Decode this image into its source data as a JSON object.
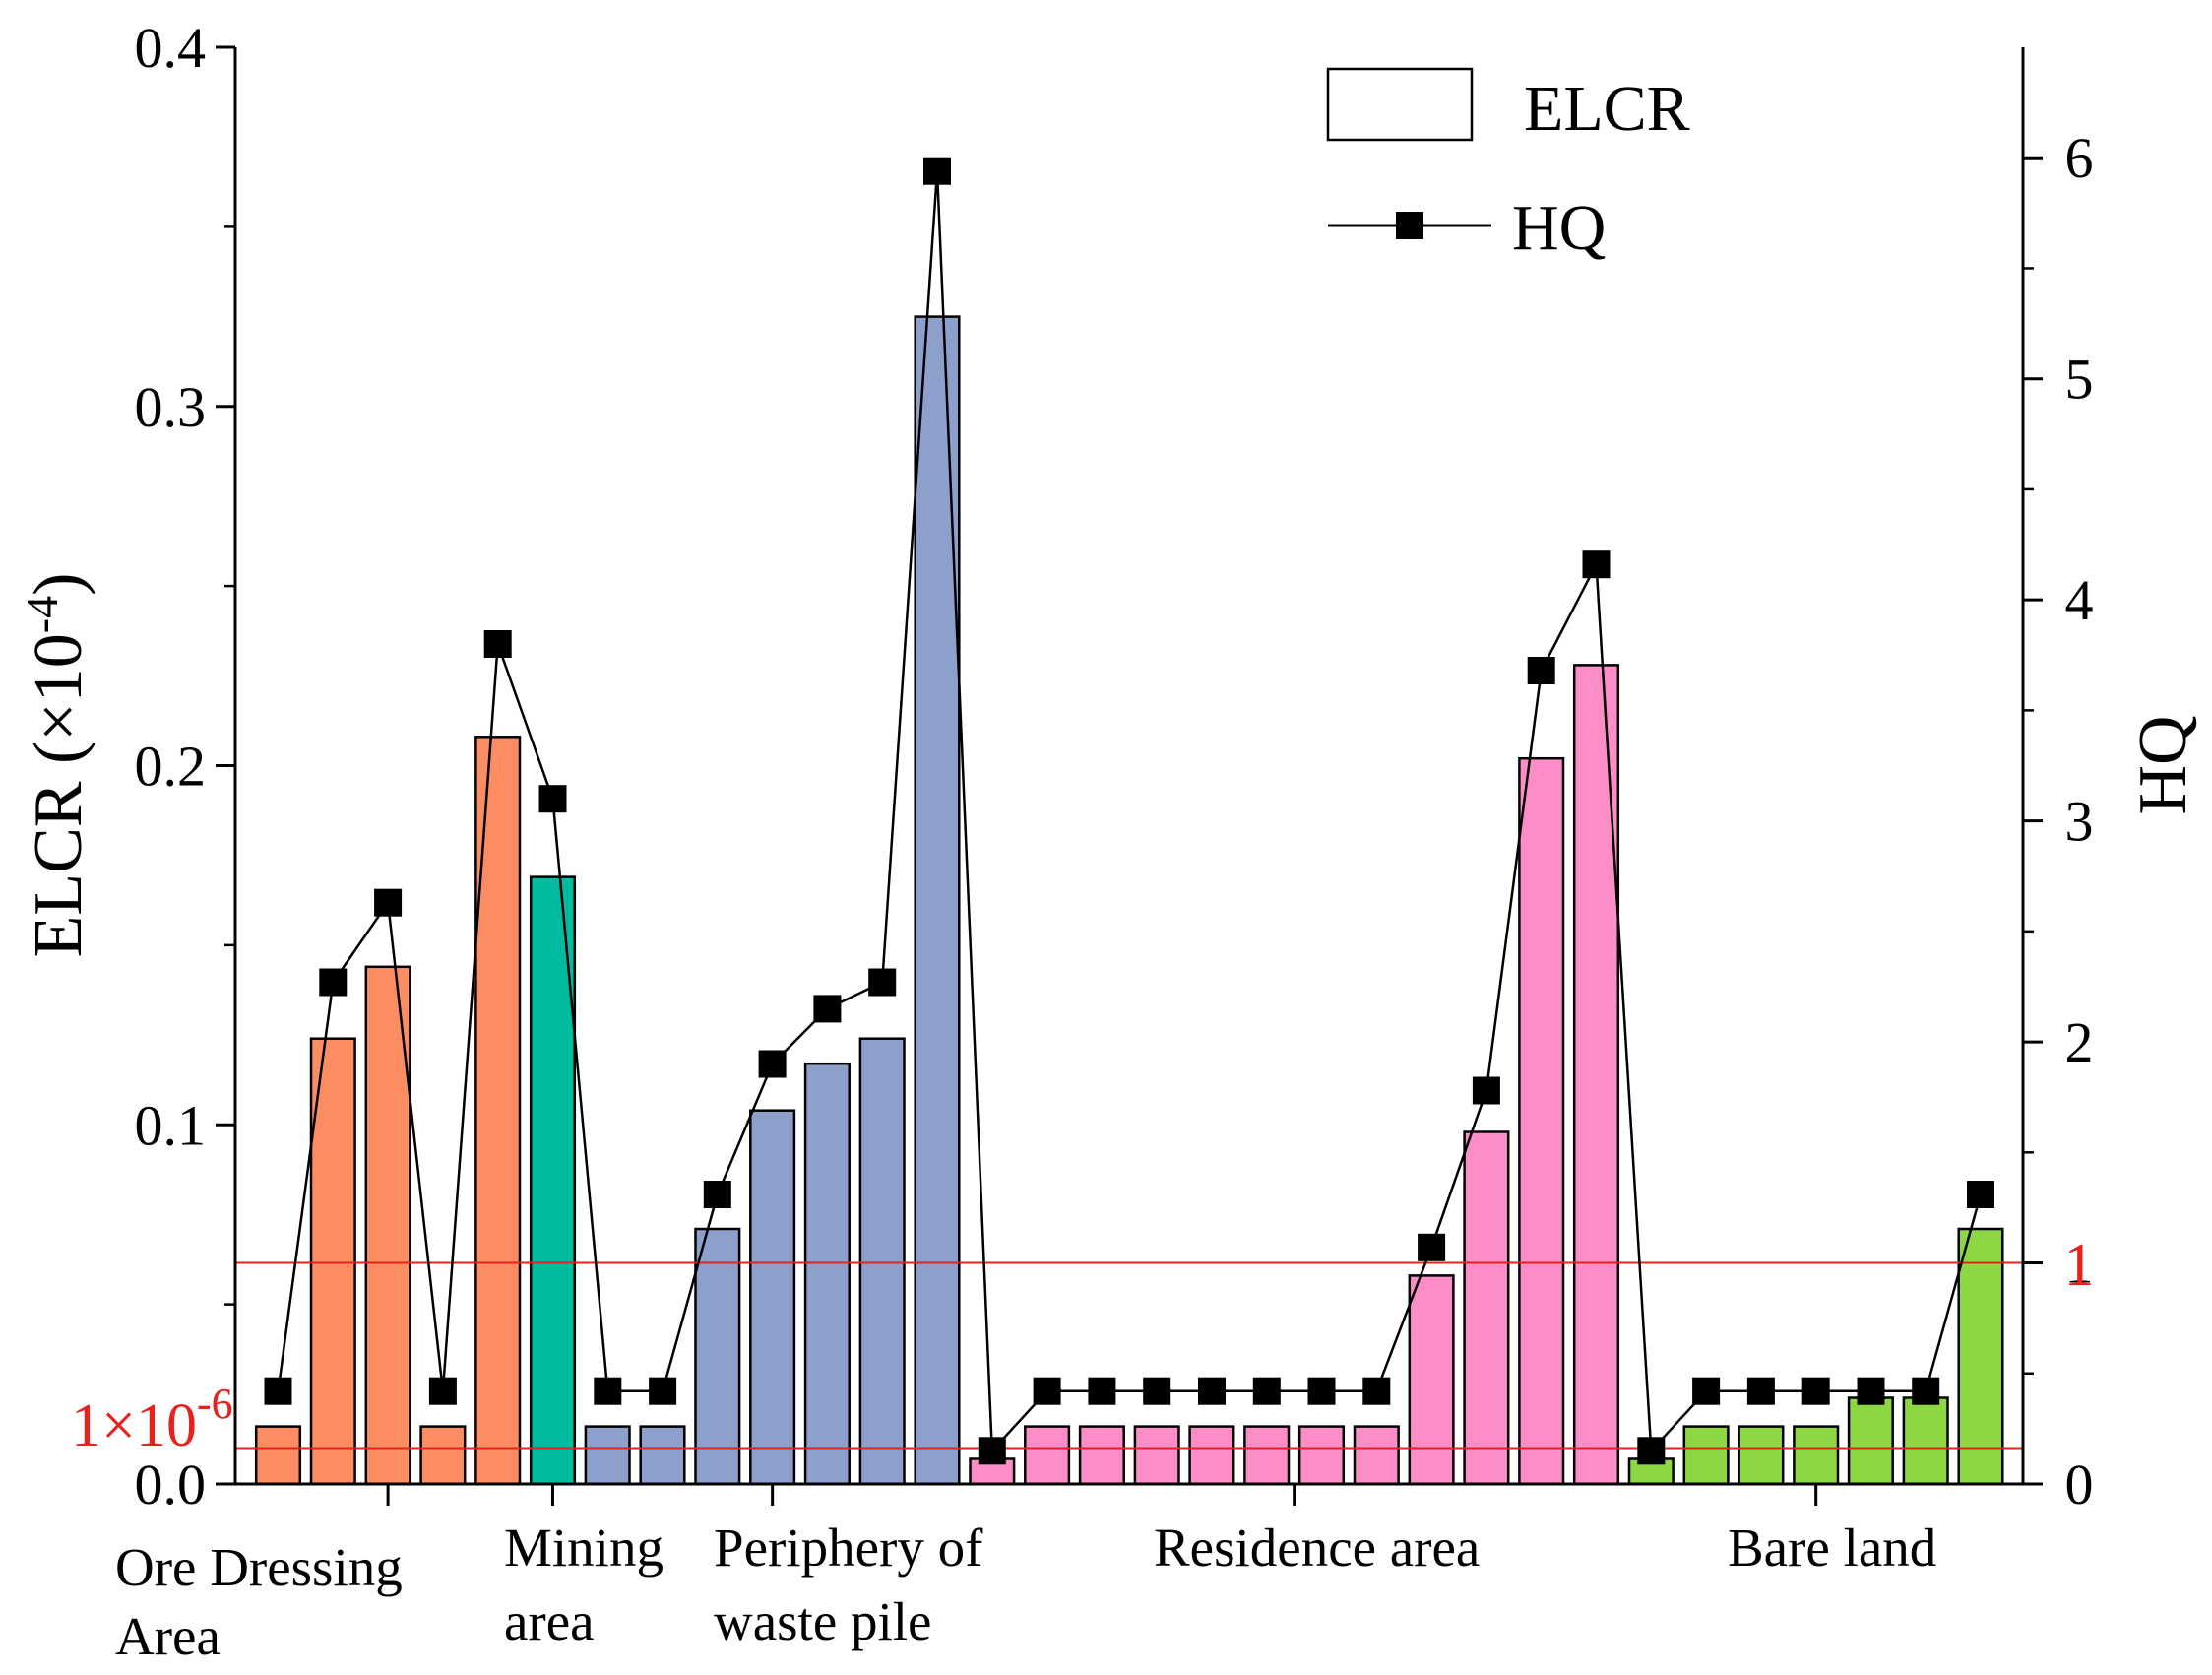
{
  "chart_data": {
    "type": "bar",
    "y_left": {
      "label": "ELCR (×10",
      "label_sup": "-4",
      "label_end": ")",
      "ylim": [
        0,
        0.4
      ],
      "ticks": [
        "0.0",
        "0.1",
        "0.2",
        "0.3",
        "0.4"
      ]
    },
    "y_right": {
      "label": "HQ",
      "ylim": [
        0,
        6.5
      ],
      "ticks": [
        "0",
        "1",
        "2",
        "3",
        "4",
        "5",
        "6"
      ]
    },
    "reference_lines": {
      "elcr": {
        "value": 0.01,
        "label": "1×10",
        "label_sup": "-6",
        "color": "#e8211c"
      },
      "hq": {
        "value": 1,
        "label": "1",
        "color": "#e8211c"
      }
    },
    "legend": {
      "bar": "ELCR",
      "line": "HQ"
    },
    "groups": [
      {
        "name": "Ore Dressing Area",
        "label_lines": [
          "Ore Dressing",
          "Area"
        ],
        "color": "#fc8d62",
        "count": 5
      },
      {
        "name": "Mining area",
        "label_lines": [
          "Mining",
          "area"
        ],
        "color": "#00bba0",
        "count": 1
      },
      {
        "name": "Periphery of waste pile",
        "label_lines": [
          "Periphery of",
          "waste pile"
        ],
        "color": "#8da0cb",
        "count": 7
      },
      {
        "name": "Residence area",
        "label_lines": [
          "Residence area"
        ],
        "color": "#fc8dc7",
        "count": 12
      },
      {
        "name": "Bare land",
        "label_lines": [
          "Bare land"
        ],
        "color": "#8cd743",
        "count": 7
      }
    ],
    "series": [
      {
        "name": "ELCR",
        "values": [
          0.016,
          0.124,
          0.144,
          0.016,
          0.208,
          0.169,
          0.016,
          0.016,
          0.071,
          0.104,
          0.117,
          0.124,
          0.325,
          0.007,
          0.016,
          0.016,
          0.016,
          0.016,
          0.016,
          0.016,
          0.016,
          0.058,
          0.098,
          0.202,
          0.228,
          0.007,
          0.016,
          0.016,
          0.016,
          0.024,
          0.024,
          0.071
        ]
      },
      {
        "name": "HQ",
        "values": [
          0.42,
          2.27,
          2.63,
          0.42,
          3.8,
          3.1,
          0.42,
          0.42,
          1.31,
          1.9,
          2.15,
          2.27,
          5.94,
          0.15,
          0.42,
          0.42,
          0.42,
          0.42,
          0.42,
          0.42,
          0.42,
          1.07,
          1.78,
          3.68,
          4.16,
          0.15,
          0.42,
          0.42,
          0.42,
          0.42,
          0.42,
          1.31
        ]
      }
    ]
  }
}
